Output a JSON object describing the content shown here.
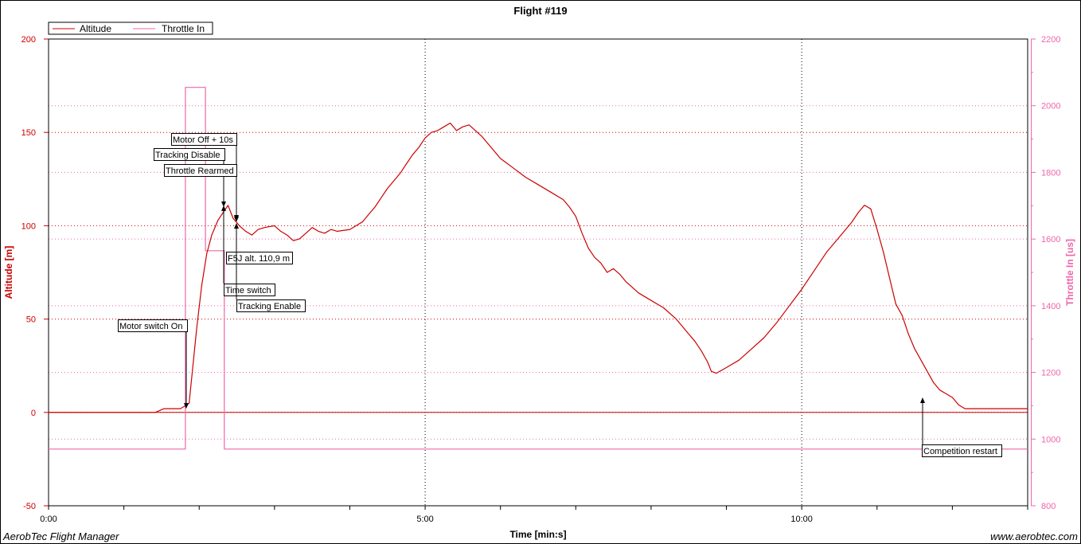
{
  "chart_data": {
    "type": "line",
    "title": "Flight #119",
    "xlabel": "Time [min:s]",
    "ylabel_left": "Altitude [m]",
    "ylabel_right": "Throttle In [us]",
    "xlim_seconds": [
      0,
      780
    ],
    "ylim_left": [
      -50,
      200
    ],
    "ylim_right": [
      800,
      2200
    ],
    "x_ticks": [
      "0:00",
      "5:00",
      "10:00"
    ],
    "y_ticks_left": [
      "200",
      "150",
      "100",
      "50",
      "0",
      "-50"
    ],
    "y_ticks_right": [
      "2200",
      "2000",
      "1800",
      "1600",
      "1400",
      "1200",
      "1000",
      "800"
    ],
    "grid": "dotted",
    "legend_position": "top-left",
    "colors": {
      "altitude": "#cc0000",
      "throttle": "#ee66aa"
    },
    "series": [
      {
        "name": "Altitude",
        "axis": "left",
        "points": [
          [
            0,
            0
          ],
          [
            60,
            0
          ],
          [
            85,
            0
          ],
          [
            92,
            2
          ],
          [
            105,
            2
          ],
          [
            110,
            4
          ],
          [
            112,
            5
          ],
          [
            118,
            45
          ],
          [
            122,
            68
          ],
          [
            126,
            85
          ],
          [
            130,
            95
          ],
          [
            135,
            103
          ],
          [
            140,
            108
          ],
          [
            143,
            110.9
          ],
          [
            147,
            104
          ],
          [
            152,
            100
          ],
          [
            157,
            97
          ],
          [
            162,
            95
          ],
          [
            167,
            98
          ],
          [
            172,
            99
          ],
          [
            180,
            100
          ],
          [
            185,
            97
          ],
          [
            190,
            95
          ],
          [
            195,
            92
          ],
          [
            200,
            93
          ],
          [
            205,
            96
          ],
          [
            210,
            99
          ],
          [
            215,
            97
          ],
          [
            220,
            96
          ],
          [
            225,
            98
          ],
          [
            230,
            97
          ],
          [
            240,
            98
          ],
          [
            245,
            100
          ],
          [
            250,
            102
          ],
          [
            255,
            106
          ],
          [
            260,
            110
          ],
          [
            265,
            115
          ],
          [
            270,
            120
          ],
          [
            275,
            124
          ],
          [
            280,
            128
          ],
          [
            285,
            133
          ],
          [
            290,
            138
          ],
          [
            295,
            142
          ],
          [
            300,
            147
          ],
          [
            305,
            150
          ],
          [
            310,
            151
          ],
          [
            315,
            153
          ],
          [
            320,
            155
          ],
          [
            325,
            151
          ],
          [
            330,
            153
          ],
          [
            335,
            154
          ],
          [
            340,
            151
          ],
          [
            345,
            148
          ],
          [
            350,
            144
          ],
          [
            355,
            140
          ],
          [
            360,
            136
          ],
          [
            370,
            131
          ],
          [
            380,
            126
          ],
          [
            390,
            122
          ],
          [
            400,
            118
          ],
          [
            410,
            114
          ],
          [
            415,
            110
          ],
          [
            420,
            105
          ],
          [
            425,
            96
          ],
          [
            430,
            88
          ],
          [
            435,
            83
          ],
          [
            440,
            80
          ],
          [
            445,
            75
          ],
          [
            450,
            77
          ],
          [
            455,
            74
          ],
          [
            460,
            70
          ],
          [
            470,
            64
          ],
          [
            480,
            60
          ],
          [
            490,
            56
          ],
          [
            500,
            50
          ],
          [
            510,
            42
          ],
          [
            515,
            38
          ],
          [
            520,
            33
          ],
          [
            525,
            27
          ],
          [
            528,
            22
          ],
          [
            532,
            21
          ],
          [
            540,
            24
          ],
          [
            550,
            28
          ],
          [
            560,
            34
          ],
          [
            570,
            40
          ],
          [
            580,
            48
          ],
          [
            590,
            57
          ],
          [
            600,
            66
          ],
          [
            610,
            76
          ],
          [
            620,
            86
          ],
          [
            630,
            94
          ],
          [
            640,
            102
          ],
          [
            645,
            107
          ],
          [
            650,
            111
          ],
          [
            655,
            109
          ],
          [
            660,
            98
          ],
          [
            665,
            86
          ],
          [
            670,
            72
          ],
          [
            675,
            58
          ],
          [
            680,
            52
          ],
          [
            685,
            42
          ],
          [
            690,
            34
          ],
          [
            695,
            28
          ],
          [
            700,
            22
          ],
          [
            705,
            16
          ],
          [
            710,
            12
          ],
          [
            715,
            10
          ],
          [
            720,
            8
          ],
          [
            725,
            4
          ],
          [
            730,
            2
          ],
          [
            740,
            2
          ],
          [
            760,
            2
          ],
          [
            780,
            2
          ]
        ]
      },
      {
        "name": "Throttle In",
        "axis": "right",
        "points": [
          [
            0,
            970
          ],
          [
            109,
            970
          ],
          [
            109,
            2055
          ],
          [
            125,
            2055
          ],
          [
            125,
            1565
          ],
          [
            140,
            1565
          ],
          [
            140,
            970
          ],
          [
            780,
            970
          ]
        ]
      }
    ],
    "reference_lines": [
      {
        "axis": "left",
        "value": 0
      }
    ],
    "annotations": [
      {
        "text": "Motor switch On",
        "t": 110,
        "alt": 2
      },
      {
        "text": "Tracking Disable",
        "t": 140,
        "alt": 110
      },
      {
        "text": "Motor Off + 10s",
        "t": 150,
        "alt": 102
      },
      {
        "text": "Throttle Rearmed",
        "t": 142,
        "alt": 108
      },
      {
        "text": "F5J alt. 110,9 m",
        "t": 143,
        "alt": 110.9
      },
      {
        "text": "Time switch",
        "t": 140,
        "alt": 110
      },
      {
        "text": "Tracking Enable",
        "t": 150,
        "alt": 100
      },
      {
        "text": "Competition restart",
        "t": 697,
        "alt": 8
      }
    ]
  },
  "footer": {
    "left": "AerobTec Flight Manager",
    "right": "www.aerobtec.com"
  }
}
